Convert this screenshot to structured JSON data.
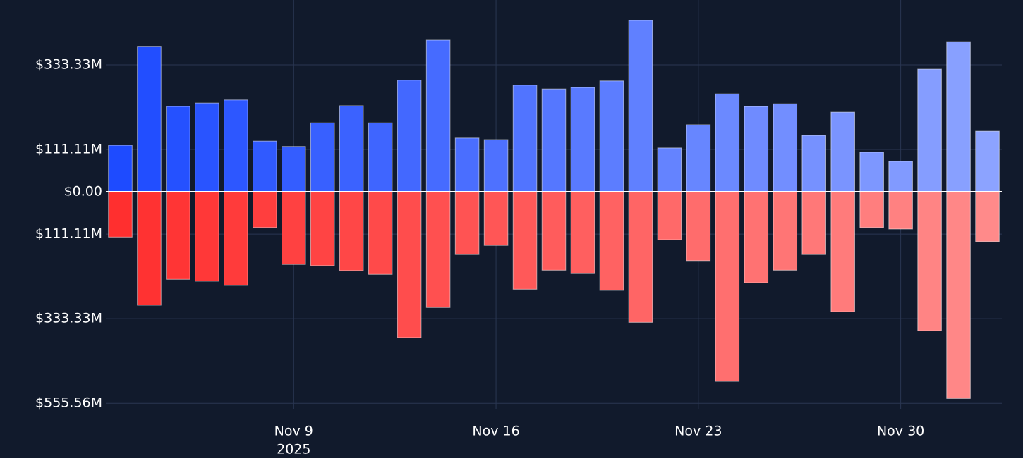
{
  "chart_data": {
    "type": "bar",
    "x": [
      "2025-11-03",
      "2025-11-04",
      "2025-11-05",
      "2025-11-06",
      "2025-11-07",
      "2025-11-08",
      "2025-11-09",
      "2025-11-10",
      "2025-11-11",
      "2025-11-12",
      "2025-11-13",
      "2025-11-14",
      "2025-11-15",
      "2025-11-16",
      "2025-11-17",
      "2025-11-18",
      "2025-11-19",
      "2025-11-20",
      "2025-11-21",
      "2025-11-22",
      "2025-11-23",
      "2025-11-24",
      "2025-11-25",
      "2025-11-26",
      "2025-11-27",
      "2025-11-28",
      "2025-11-29",
      "2025-11-30",
      "2025-12-01",
      "2025-12-02",
      "2025-12-03"
    ],
    "series": [
      {
        "values": [
          122,
          382,
          224,
          233,
          241,
          133,
          119,
          181,
          226,
          181,
          293,
          398,
          141,
          137,
          280,
          270,
          274,
          291,
          450,
          115,
          176,
          257,
          224,
          231,
          148,
          209,
          104,
          80,
          322,
          394,
          159
        ],
        "colors": [
          "#1e4bff",
          "#224eff",
          "#2551ff",
          "#2954ff",
          "#2d57ff",
          "#305aff",
          "#345dff",
          "#3860ff",
          "#3b62ff",
          "#3f65ff",
          "#4368ff",
          "#466bff",
          "#4a6eff",
          "#4e71ff",
          "#5174ff",
          "#5577ff",
          "#597aff",
          "#5c7dff",
          "#6080ff",
          "#6483ff",
          "#6786ff",
          "#6b89ff",
          "#6f8bff",
          "#728eff",
          "#7691ff",
          "#7a94ff",
          "#7d97ff",
          "#819aff",
          "#859dff",
          "#88a0ff",
          "#8ca3ff"
        ]
      },
      {
        "values": [
          -119,
          -298,
          -230,
          -235,
          -246,
          -94,
          -191,
          -194,
          -207,
          -217,
          -383,
          -304,
          -165,
          -141,
          -256,
          -206,
          -215,
          -259,
          -343,
          -126,
          -181,
          -498,
          -239,
          -206,
          -165,
          -315,
          -94,
          -98,
          -365,
          -543,
          -131
        ],
        "colors": [
          "#ff2f2f",
          "#ff3232",
          "#ff3535",
          "#ff3838",
          "#ff3b3b",
          "#ff3e3e",
          "#ff4141",
          "#ff4444",
          "#ff4747",
          "#ff4a4a",
          "#ff4d4d",
          "#ff5050",
          "#ff5353",
          "#ff5656",
          "#ff5959",
          "#ff5c5c",
          "#ff5f5f",
          "#ff6262",
          "#ff6565",
          "#ff6969",
          "#ff6c6c",
          "#ff6f6f",
          "#ff7272",
          "#ff7575",
          "#ff7878",
          "#ff7b7b",
          "#ff7e7e",
          "#ff8181",
          "#ff8484",
          "#ff8787",
          "#ff8a8a"
        ]
      }
    ],
    "xlim": [
      "2025-11-02T12:00:00Z",
      "2025-12-03T12:00:00Z"
    ],
    "xticks": [
      {
        "value": "2025-11-09",
        "label": "Nov 9"
      },
      {
        "value": "2025-11-16",
        "label": "Nov 16"
      },
      {
        "value": "2025-11-23",
        "label": "Nov 23"
      },
      {
        "value": "2025-11-30",
        "label": "Nov 30"
      }
    ],
    "xtick_year": "2025",
    "ylim": [
      -570,
      485
    ],
    "yticks": [
      {
        "value": 333.33,
        "label": "$333.33M"
      },
      {
        "value": 111.11,
        "label": "$111.11M"
      },
      {
        "value": 0,
        "label": "$0.00"
      },
      {
        "value": -111.11,
        "label": "$111.11M"
      },
      {
        "value": -333.33,
        "label": "$333.33M"
      },
      {
        "value": -555.56,
        "label": "$555.56M"
      }
    ],
    "grid": true,
    "background": "#111a2c"
  }
}
